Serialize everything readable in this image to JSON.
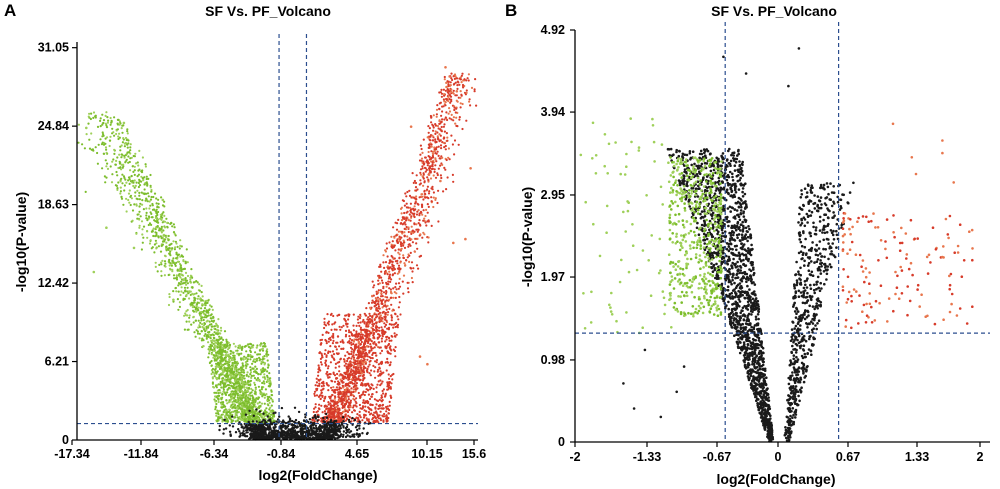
{
  "figure": {
    "colors": {
      "up": "#d73b2a",
      "up_light": "#e8764d",
      "down": "#7cbd2c",
      "down_light": "#9fd05a",
      "ns": "#1a1a1a",
      "threshold": "#2b4e8f",
      "axis": "#000000"
    }
  },
  "chart_data": [
    {
      "id": "A",
      "type": "scatter",
      "panel_label": "A",
      "title": "SF Vs. PF_Volcano",
      "xlabel": "log2(FoldChange)",
      "ylabel": "-log10(P-value)",
      "x_ticks": [
        -17.34,
        -11.84,
        -6.34,
        -0.84,
        4.65,
        10.15,
        15.6
      ],
      "x_tick_labels": [
        "-17.34",
        "-11.84",
        "-6.34",
        "-0.84",
        "4.65",
        "10.15",
        "15.6"
      ],
      "y_ticks": [
        0,
        6.21,
        12.42,
        18.63,
        24.84,
        31.05
      ],
      "y_tick_labels": [
        "0",
        "6.21",
        "12.42",
        "18.63",
        "24.84",
        "31.05"
      ],
      "xlim": [
        -18.4,
        17.0
      ],
      "ylim": [
        0,
        31.5
      ],
      "thresholds": {
        "fc_low": -1.0,
        "fc_high": 1.0,
        "p": 1.3
      },
      "groups": [
        "up-regulated (red)",
        "down-regulated (green)",
        "not significant (black)"
      ]
    },
    {
      "id": "B",
      "type": "scatter",
      "panel_label": "B",
      "title": "SF Vs. PF_Volcano",
      "xlabel": "log2(FoldChange)",
      "ylabel": "-log10(P-value)",
      "x_ticks": [
        -2,
        -1.33,
        -0.67,
        0,
        0.67,
        1.33,
        2
      ],
      "x_tick_labels": [
        "-2",
        "-1.33",
        "-0.67",
        "0",
        "0.67",
        "1.33",
        "2"
      ],
      "y_ticks": [
        0,
        0.98,
        1.97,
        2.95,
        3.94,
        4.92
      ],
      "y_tick_labels": [
        "0",
        "0.98",
        "1.97",
        "2.95",
        "3.94",
        "4.92"
      ],
      "xlim": [
        -2,
        2.07
      ],
      "ylim": [
        0,
        4.92
      ],
      "thresholds": {
        "fc_low": -0.58,
        "fc_high": 0.58,
        "p": 1.3
      },
      "groups": [
        "up-regulated (red)",
        "down-regulated (green)",
        "not significant (black)"
      ]
    }
  ]
}
